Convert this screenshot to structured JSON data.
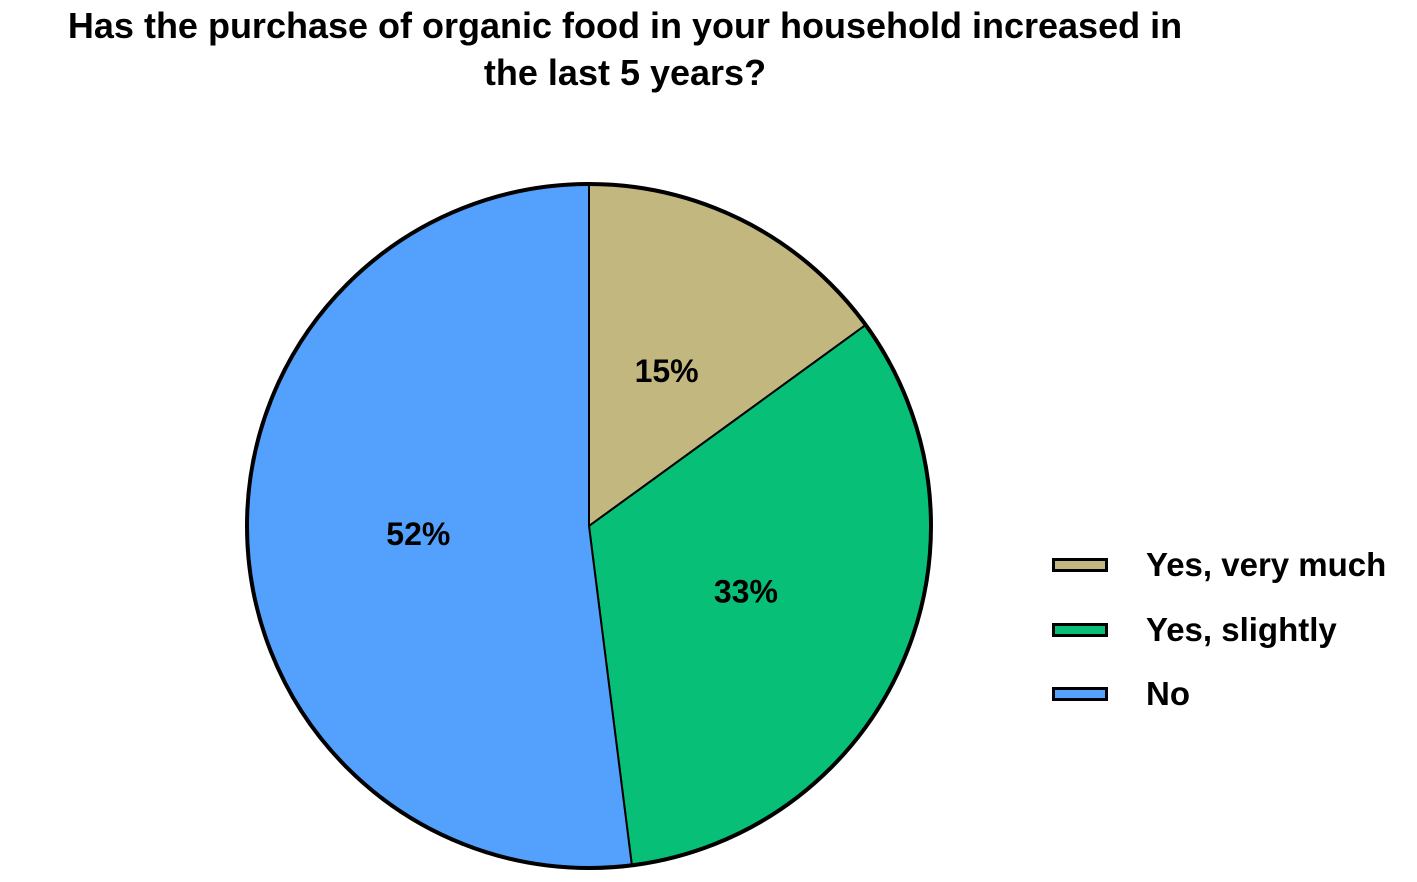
{
  "chart_data": {
    "type": "pie",
    "title": "Has the purchase of organic food in your household increased in the last 5 years?",
    "title_lines": [
      "Has the purchase of organic food in your household increased in",
      "the last 5 years?"
    ],
    "categories": [
      "Yes, very much",
      "Yes, slightly",
      "No"
    ],
    "values": [
      15,
      33,
      52
    ],
    "labels": [
      "15%",
      "33%",
      "52%"
    ],
    "colors": [
      "#c2b77f",
      "#08bf78",
      "#53a1fc"
    ],
    "legend_position": "right",
    "start_angle": "12 o'clock",
    "direction": "clockwise"
  }
}
